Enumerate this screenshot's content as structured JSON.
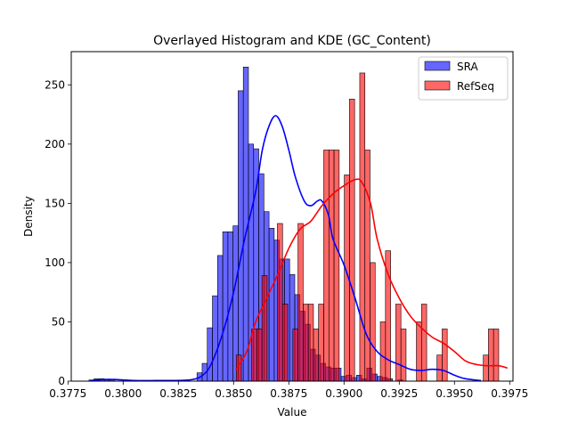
{
  "chart_data": {
    "type": "bar",
    "title": "Overlayed Histogram and KDE (GC_Content)",
    "xlabel": "Value",
    "ylabel": "Density",
    "xlim": [
      0.37765,
      0.39765
    ],
    "ylim": [
      0,
      278
    ],
    "xticks": [
      0.3775,
      0.38,
      0.3825,
      0.385,
      0.3875,
      0.39,
      0.3925,
      0.395,
      0.3975
    ],
    "xtick_labels": [
      "0.3775",
      "0.3800",
      "0.3825",
      "0.3850",
      "0.3875",
      "0.3900",
      "0.3925",
      "0.3950",
      "0.3975"
    ],
    "yticks": [
      0,
      50,
      100,
      150,
      200,
      250
    ],
    "ytick_labels": [
      "0",
      "50",
      "100",
      "150",
      "200",
      "250"
    ],
    "legend_position": "top-right",
    "grid": false,
    "series": [
      {
        "name": "SRA",
        "kind": "histogram",
        "fill": "#0000ff",
        "fill_opacity": 0.6,
        "bin_start": 0.37845,
        "bin_width": 0.000233,
        "counts": [
          1,
          2,
          2,
          1,
          1,
          0,
          0,
          0,
          0,
          0,
          0,
          0,
          0,
          0,
          0,
          0,
          0,
          0,
          0,
          0,
          0,
          7,
          15,
          45,
          72,
          106,
          126,
          126,
          131,
          245,
          265,
          200,
          196,
          175,
          143,
          129,
          119,
          103,
          103,
          90,
          73,
          59,
          48,
          27,
          22,
          15,
          12,
          11,
          11,
          4,
          5,
          3,
          5,
          2,
          11,
          6,
          4,
          3,
          2,
          0,
          1
        ]
      },
      {
        "name": "RefSeq",
        "kind": "histogram",
        "fill": "#ff0000",
        "fill_opacity": 0.6,
        "bin_start": 0.38512,
        "bin_width": 0.000233,
        "counts": [
          22,
          0,
          0,
          44,
          44,
          89,
          0,
          0,
          133,
          65,
          0,
          44,
          133,
          65,
          65,
          44,
          65,
          195,
          195,
          195,
          0,
          174,
          238,
          0,
          260,
          195,
          100,
          0,
          50,
          110,
          0,
          65,
          44,
          0,
          0,
          50,
          65,
          0,
          0,
          22,
          44,
          0,
          0,
          0,
          0,
          0,
          0,
          0,
          22,
          44,
          44
        ]
      },
      {
        "name": "SRA",
        "kind": "kde",
        "color": "#0000ff",
        "x": [
          0.3785,
          0.3793,
          0.38,
          0.3805,
          0.3815,
          0.383,
          0.3836,
          0.384,
          0.3845,
          0.385,
          0.3855,
          0.386,
          0.3863,
          0.3866,
          0.3869,
          0.3872,
          0.3875,
          0.3878,
          0.3882,
          0.3885,
          0.3888,
          0.389,
          0.3893,
          0.3895,
          0.39,
          0.3905,
          0.391,
          0.3915,
          0.392,
          0.3925,
          0.393,
          0.3935,
          0.394,
          0.3945,
          0.395,
          0.3955,
          0.3962
        ],
        "y": [
          0.5,
          1.5,
          1,
          0.5,
          0.5,
          1,
          5,
          15,
          40,
          75,
          120,
          160,
          195,
          215,
          224,
          215,
          195,
          172,
          152,
          148,
          152,
          152,
          140,
          120,
          98,
          70,
          40,
          25,
          18,
          14,
          10,
          9,
          10,
          9,
          5,
          2,
          0.5
        ]
      },
      {
        "name": "RefSeq",
        "kind": "kde",
        "color": "#ff0000",
        "x": [
          0.3851,
          0.3856,
          0.386,
          0.3865,
          0.387,
          0.3875,
          0.388,
          0.3885,
          0.389,
          0.3895,
          0.39,
          0.3905,
          0.3908,
          0.3912,
          0.3915,
          0.392,
          0.3925,
          0.393,
          0.3935,
          0.394,
          0.3945,
          0.395,
          0.3955,
          0.396,
          0.3965,
          0.397,
          0.3974
        ],
        "y": [
          10,
          25,
          50,
          70,
          90,
          112,
          128,
          135,
          148,
          158,
          165,
          170,
          168,
          150,
          120,
          90,
          70,
          55,
          45,
          37,
          32,
          25,
          17,
          14,
          13,
          13,
          11
        ]
      }
    ]
  }
}
